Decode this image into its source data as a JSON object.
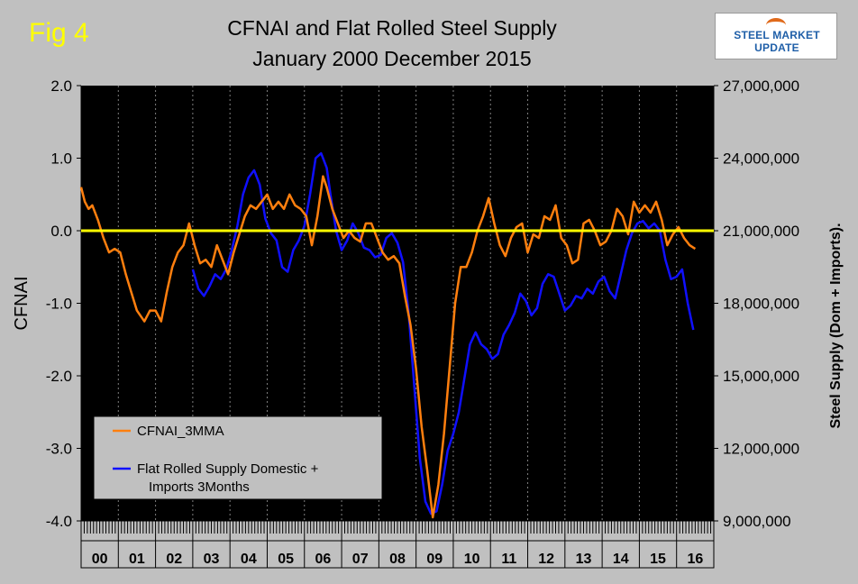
{
  "header": {
    "fig_label": "Fig 4",
    "title_line1": "CFNAI and Flat Rolled Steel Supply",
    "title_line2": "January 2000 December 2015",
    "logo_text": "STEEL MARKET UPDATE"
  },
  "colors": {
    "background": "#c0c0c0",
    "plot": "#000000",
    "cfnai": "#ff7f0e",
    "supply": "#1010ff",
    "zero_line": "#ffff00",
    "fig_label": "#ffff00"
  },
  "chart_data": {
    "type": "line",
    "xlabel": "",
    "ylabel_left": "CFNAI",
    "ylabel_right": "Steel Supply (Dom + Imports).",
    "ylim_left": [
      -4.0,
      2.0
    ],
    "ylim_right": [
      9000000,
      27000000
    ],
    "left_ticks": [
      "2.0",
      "1.0",
      "0.0",
      "-1.0",
      "-2.0",
      "-3.0",
      "-4.0"
    ],
    "right_ticks": [
      "27,000,000",
      "24,000,000",
      "21,000,000",
      "18,000,000",
      "15,000,000",
      "12,000,000",
      "9,000,000"
    ],
    "year_labels": [
      "00",
      "01",
      "02",
      "03",
      "04",
      "05",
      "06",
      "07",
      "08",
      "09",
      "10",
      "11",
      "12",
      "13",
      "14",
      "15",
      "16"
    ],
    "xlim": [
      2000.0,
      2017.0
    ],
    "grid_x": "dashed vertical at each year",
    "reference_line": 0.0,
    "legend_position": "lower-left",
    "series": [
      {
        "name": "CFNAI_3MMA",
        "axis": "left",
        "points": [
          [
            2000.0,
            0.6
          ],
          [
            2000.1,
            0.4
          ],
          [
            2000.2,
            0.3
          ],
          [
            2000.3,
            0.35
          ],
          [
            2000.45,
            0.15
          ],
          [
            2000.6,
            -0.1
          ],
          [
            2000.75,
            -0.3
          ],
          [
            2000.9,
            -0.25
          ],
          [
            2001.05,
            -0.3
          ],
          [
            2001.2,
            -0.6
          ],
          [
            2001.35,
            -0.85
          ],
          [
            2001.5,
            -1.1
          ],
          [
            2001.7,
            -1.25
          ],
          [
            2001.85,
            -1.1
          ],
          [
            2002.0,
            -1.1
          ],
          [
            2002.15,
            -1.25
          ],
          [
            2002.3,
            -0.85
          ],
          [
            2002.45,
            -0.5
          ],
          [
            2002.6,
            -0.3
          ],
          [
            2002.75,
            -0.2
          ],
          [
            2002.9,
            0.1
          ],
          [
            2003.05,
            -0.2
          ],
          [
            2003.2,
            -0.45
          ],
          [
            2003.35,
            -0.4
          ],
          [
            2003.5,
            -0.5
          ],
          [
            2003.65,
            -0.2
          ],
          [
            2003.8,
            -0.4
          ],
          [
            2003.95,
            -0.6
          ],
          [
            2004.1,
            -0.3
          ],
          [
            2004.25,
            -0.05
          ],
          [
            2004.4,
            0.2
          ],
          [
            2004.55,
            0.35
          ],
          [
            2004.7,
            0.3
          ],
          [
            2004.85,
            0.4
          ],
          [
            2005.0,
            0.5
          ],
          [
            2005.15,
            0.3
          ],
          [
            2005.3,
            0.4
          ],
          [
            2005.45,
            0.3
          ],
          [
            2005.6,
            0.5
          ],
          [
            2005.75,
            0.35
          ],
          [
            2005.9,
            0.3
          ],
          [
            2006.05,
            0.2
          ],
          [
            2006.2,
            -0.2
          ],
          [
            2006.35,
            0.2
          ],
          [
            2006.5,
            0.75
          ],
          [
            2006.6,
            0.6
          ],
          [
            2006.75,
            0.3
          ],
          [
            2006.9,
            0.1
          ],
          [
            2007.05,
            -0.1
          ],
          [
            2007.2,
            0.0
          ],
          [
            2007.35,
            -0.1
          ],
          [
            2007.5,
            -0.15
          ],
          [
            2007.65,
            0.1
          ],
          [
            2007.8,
            0.1
          ],
          [
            2007.95,
            -0.1
          ],
          [
            2008.1,
            -0.3
          ],
          [
            2008.25,
            -0.4
          ],
          [
            2008.4,
            -0.35
          ],
          [
            2008.55,
            -0.45
          ],
          [
            2008.7,
            -0.9
          ],
          [
            2008.85,
            -1.3
          ],
          [
            2009.0,
            -1.9
          ],
          [
            2009.15,
            -2.7
          ],
          [
            2009.3,
            -3.3
          ],
          [
            2009.45,
            -3.95
          ],
          [
            2009.6,
            -3.5
          ],
          [
            2009.75,
            -2.8
          ],
          [
            2009.9,
            -1.9
          ],
          [
            2010.05,
            -1.0
          ],
          [
            2010.2,
            -0.5
          ],
          [
            2010.35,
            -0.5
          ],
          [
            2010.5,
            -0.3
          ],
          [
            2010.65,
            0.0
          ],
          [
            2010.8,
            0.2
          ],
          [
            2010.95,
            0.45
          ],
          [
            2011.1,
            0.1
          ],
          [
            2011.25,
            -0.2
          ],
          [
            2011.4,
            -0.35
          ],
          [
            2011.55,
            -0.1
          ],
          [
            2011.7,
            0.05
          ],
          [
            2011.85,
            0.1
          ],
          [
            2012.0,
            -0.3
          ],
          [
            2012.15,
            -0.05
          ],
          [
            2012.3,
            -0.1
          ],
          [
            2012.45,
            0.2
          ],
          [
            2012.6,
            0.15
          ],
          [
            2012.75,
            0.35
          ],
          [
            2012.9,
            -0.1
          ],
          [
            2013.05,
            -0.2
          ],
          [
            2013.2,
            -0.45
          ],
          [
            2013.35,
            -0.4
          ],
          [
            2013.5,
            0.1
          ],
          [
            2013.65,
            0.15
          ],
          [
            2013.8,
            0.0
          ],
          [
            2013.95,
            -0.2
          ],
          [
            2014.1,
            -0.15
          ],
          [
            2014.25,
            0.0
          ],
          [
            2014.4,
            0.3
          ],
          [
            2014.55,
            0.2
          ],
          [
            2014.7,
            -0.05
          ],
          [
            2014.85,
            0.4
          ],
          [
            2015.0,
            0.25
          ],
          [
            2015.15,
            0.35
          ],
          [
            2015.3,
            0.25
          ],
          [
            2015.45,
            0.4
          ],
          [
            2015.6,
            0.15
          ],
          [
            2015.75,
            -0.2
          ],
          [
            2015.9,
            -0.05
          ],
          [
            2016.05,
            0.05
          ],
          [
            2016.2,
            -0.1
          ],
          [
            2016.35,
            -0.2
          ],
          [
            2016.5,
            -0.25
          ]
        ]
      },
      {
        "name": "Flat Rolled Supply Domestic + Imports 3Months",
        "axis": "right",
        "points": [
          [
            2003.0,
            19.4
          ],
          [
            2003.15,
            18.6
          ],
          [
            2003.3,
            18.3
          ],
          [
            2003.45,
            18.7
          ],
          [
            2003.6,
            19.2
          ],
          [
            2003.75,
            19.0
          ],
          [
            2003.9,
            19.4
          ],
          [
            2004.05,
            20.2
          ],
          [
            2004.2,
            21.2
          ],
          [
            2004.35,
            22.5
          ],
          [
            2004.5,
            23.2
          ],
          [
            2004.65,
            23.5
          ],
          [
            2004.8,
            22.9
          ],
          [
            2004.95,
            21.5
          ],
          [
            2005.1,
            20.9
          ],
          [
            2005.25,
            20.6
          ],
          [
            2005.4,
            19.5
          ],
          [
            2005.55,
            19.3
          ],
          [
            2005.7,
            20.2
          ],
          [
            2005.85,
            20.6
          ],
          [
            2006.0,
            21.2
          ],
          [
            2006.15,
            22.5
          ],
          [
            2006.3,
            24.0
          ],
          [
            2006.45,
            24.2
          ],
          [
            2006.6,
            23.6
          ],
          [
            2006.7,
            22.5
          ],
          [
            2006.85,
            21.0
          ],
          [
            2007.0,
            20.2
          ],
          [
            2007.15,
            20.6
          ],
          [
            2007.3,
            21.3
          ],
          [
            2007.45,
            20.9
          ],
          [
            2007.6,
            20.3
          ],
          [
            2007.75,
            20.2
          ],
          [
            2007.9,
            19.9
          ],
          [
            2008.05,
            20.0
          ],
          [
            2008.2,
            20.7
          ],
          [
            2008.35,
            20.9
          ],
          [
            2008.5,
            20.5
          ],
          [
            2008.65,
            19.7
          ],
          [
            2008.8,
            17.6
          ],
          [
            2008.95,
            14.6
          ],
          [
            2009.1,
            11.6
          ],
          [
            2009.25,
            9.8
          ],
          [
            2009.4,
            9.3
          ],
          [
            2009.55,
            9.4
          ],
          [
            2009.7,
            10.5
          ],
          [
            2009.85,
            11.9
          ],
          [
            2010.0,
            12.6
          ],
          [
            2010.15,
            13.5
          ],
          [
            2010.3,
            14.9
          ],
          [
            2010.45,
            16.3
          ],
          [
            2010.6,
            16.8
          ],
          [
            2010.75,
            16.3
          ],
          [
            2010.9,
            16.1
          ],
          [
            2011.05,
            15.7
          ],
          [
            2011.2,
            15.9
          ],
          [
            2011.35,
            16.7
          ],
          [
            2011.5,
            17.1
          ],
          [
            2011.65,
            17.6
          ],
          [
            2011.8,
            18.4
          ],
          [
            2011.95,
            18.1
          ],
          [
            2012.1,
            17.5
          ],
          [
            2012.25,
            17.8
          ],
          [
            2012.4,
            18.8
          ],
          [
            2012.55,
            19.2
          ],
          [
            2012.7,
            19.1
          ],
          [
            2012.85,
            18.4
          ],
          [
            2013.0,
            17.7
          ],
          [
            2013.15,
            17.9
          ],
          [
            2013.3,
            18.3
          ],
          [
            2013.45,
            18.2
          ],
          [
            2013.6,
            18.6
          ],
          [
            2013.75,
            18.4
          ],
          [
            2013.9,
            18.9
          ],
          [
            2014.05,
            19.1
          ],
          [
            2014.2,
            18.5
          ],
          [
            2014.35,
            18.2
          ],
          [
            2014.5,
            19.2
          ],
          [
            2014.65,
            20.2
          ],
          [
            2014.8,
            20.9
          ],
          [
            2014.95,
            21.3
          ],
          [
            2015.1,
            21.4
          ],
          [
            2015.25,
            21.1
          ],
          [
            2015.4,
            21.3
          ],
          [
            2015.55,
            21.0
          ],
          [
            2015.7,
            19.8
          ],
          [
            2015.85,
            19.0
          ],
          [
            2016.0,
            19.1
          ],
          [
            2016.15,
            19.4
          ],
          [
            2016.3,
            18.0
          ],
          [
            2016.45,
            16.9
          ]
        ]
      }
    ],
    "supply_units_note": "right-axis values in millions"
  }
}
